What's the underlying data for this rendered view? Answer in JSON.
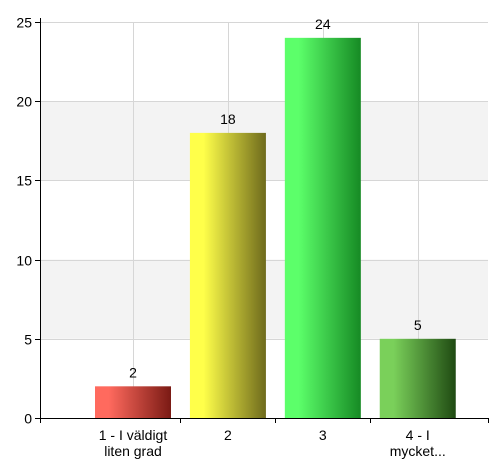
{
  "chart_data": {
    "type": "bar",
    "title": "",
    "xlabel": "",
    "ylabel": "",
    "categories": [
      [
        "1 - I väldigt",
        "liten grad"
      ],
      [
        "2"
      ],
      [
        "3"
      ],
      [
        "4 - I",
        "mycket..."
      ]
    ],
    "values": [
      2,
      18,
      24,
      5
    ],
    "ylim": [
      0,
      25
    ],
    "yticks": [
      0,
      5,
      10,
      15,
      20,
      25
    ],
    "grid": true,
    "legend": "none",
    "colors": [
      {
        "light": "#ff6a5e",
        "dark": "#7a1a14"
      },
      {
        "light": "#ffff4a",
        "dark": "#6e6a1c"
      },
      {
        "light": "#5cff6a",
        "dark": "#168a24"
      },
      {
        "light": "#7ad05a",
        "dark": "#1f4a12"
      }
    ],
    "band_color": "#f3f3f3",
    "grid_color": "#d6d6d6",
    "axis_color": "#000000"
  }
}
